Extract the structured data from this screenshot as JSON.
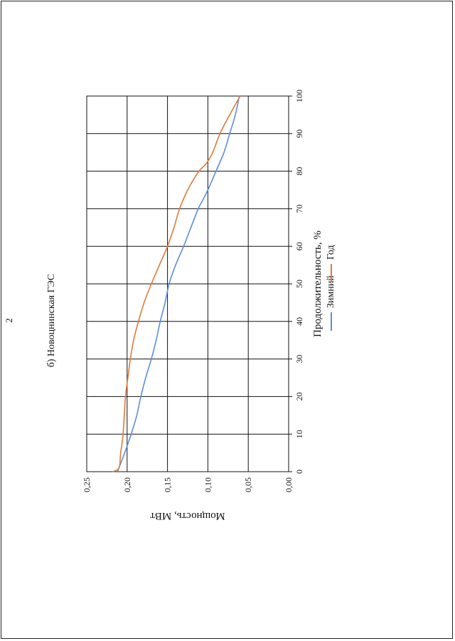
{
  "page": {
    "page_number": "2",
    "caption": "б) Новоцнинская ГЭС"
  },
  "chart_data": {
    "type": "line",
    "xlabel": "Продолжительность, %",
    "ylabel": "Мощность, МВт",
    "xlim": [
      0,
      100
    ],
    "ylim": [
      0,
      0.25
    ],
    "x_ticks": [
      "0",
      "10",
      "20",
      "30",
      "40",
      "50",
      "60",
      "70",
      "80",
      "90",
      "100"
    ],
    "y_ticks": [
      "0,00",
      "0,05",
      "0,10",
      "0,15",
      "0,20",
      "0,25"
    ],
    "grid": true,
    "legend_position": "bottom",
    "series": [
      {
        "name": "Зимний",
        "color": "#5B8FD9",
        "points": [
          [
            0,
            0.212
          ],
          [
            5,
            0.203
          ],
          [
            10,
            0.195
          ],
          [
            15,
            0.188
          ],
          [
            20,
            0.183
          ],
          [
            25,
            0.177
          ],
          [
            30,
            0.17
          ],
          [
            35,
            0.164
          ],
          [
            40,
            0.159
          ],
          [
            45,
            0.153
          ],
          [
            50,
            0.148
          ],
          [
            55,
            0.14
          ],
          [
            60,
            0.13
          ],
          [
            65,
            0.121
          ],
          [
            70,
            0.112
          ],
          [
            72,
            0.107
          ],
          [
            75,
            0.1
          ],
          [
            80,
            0.09
          ],
          [
            85,
            0.08
          ],
          [
            90,
            0.073
          ],
          [
            95,
            0.066
          ],
          [
            100,
            0.061
          ]
        ]
      },
      {
        "name": "Год",
        "color": "#E07A38",
        "points": [
          [
            0,
            0.218
          ],
          [
            1,
            0.21
          ],
          [
            5,
            0.208
          ],
          [
            10,
            0.205
          ],
          [
            20,
            0.202
          ],
          [
            25,
            0.199
          ],
          [
            30,
            0.196
          ],
          [
            35,
            0.192
          ],
          [
            40,
            0.186
          ],
          [
            45,
            0.179
          ],
          [
            50,
            0.17
          ],
          [
            55,
            0.16
          ],
          [
            60,
            0.15
          ],
          [
            65,
            0.142
          ],
          [
            70,
            0.135
          ],
          [
            75,
            0.125
          ],
          [
            80,
            0.111
          ],
          [
            82,
            0.102
          ],
          [
            85,
            0.094
          ],
          [
            90,
            0.085
          ],
          [
            95,
            0.073
          ],
          [
            100,
            0.06
          ]
        ]
      }
    ]
  }
}
